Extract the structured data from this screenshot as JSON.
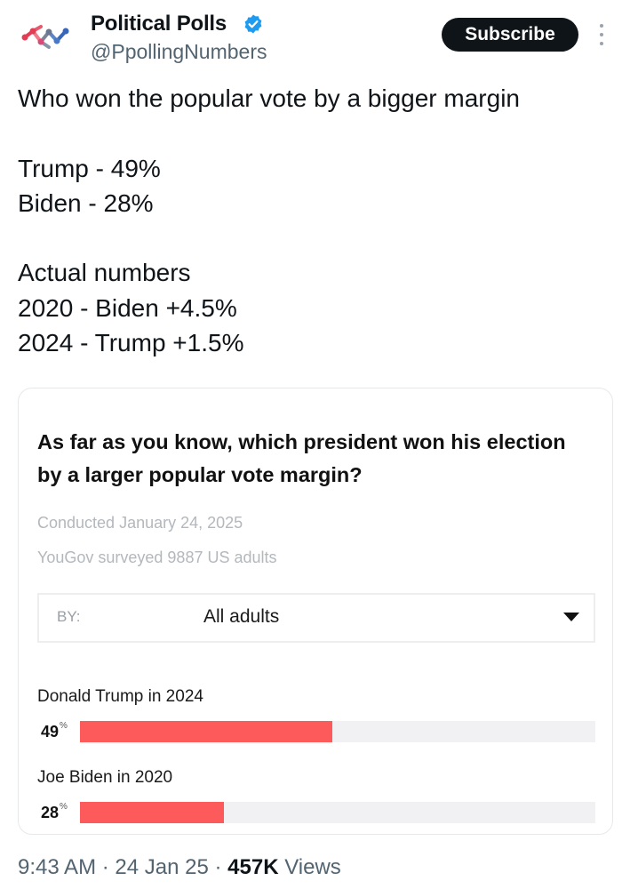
{
  "account": {
    "name": "Political Polls",
    "handle": "@PpollingNumbers",
    "verified": true,
    "subscribe_label": "Subscribe"
  },
  "tweet": {
    "text": "Who won the popular vote by a bigger margin\n\nTrump - 49%\nBiden - 28%\n\nActual numbers\n2020 - Biden +4.5%\n2024 - Trump +1.5%"
  },
  "card": {
    "question": "As far as you know, which president won his election by a larger popular vote margin?",
    "conducted": "Conducted January 24, 2025",
    "surveyed": "YouGov surveyed 9887 US adults",
    "filter": {
      "label": "BY:",
      "value": "All adults"
    },
    "results": [
      {
        "label": "Donald Trump in 2024",
        "value": "49",
        "unit": "%",
        "fraction": 0.49
      },
      {
        "label": "Joe Biden in 2020",
        "value": "28",
        "unit": "%",
        "fraction": 0.28
      }
    ]
  },
  "footer": {
    "time": "9:43 AM",
    "sep": "·",
    "date": "24 Jan 25",
    "views_count": "457K",
    "views_label": "Views"
  },
  "colors": {
    "bar": "#fd5b5b",
    "bar_track": "#f1f1f3",
    "verified": "#1d9bf0",
    "subscribe_bg": "#0f1419"
  },
  "icons": {
    "logo": "political-polls-logo",
    "verified": "verified-badge-icon",
    "more": "more-vertical-icon",
    "caret": "caret-down-icon"
  }
}
